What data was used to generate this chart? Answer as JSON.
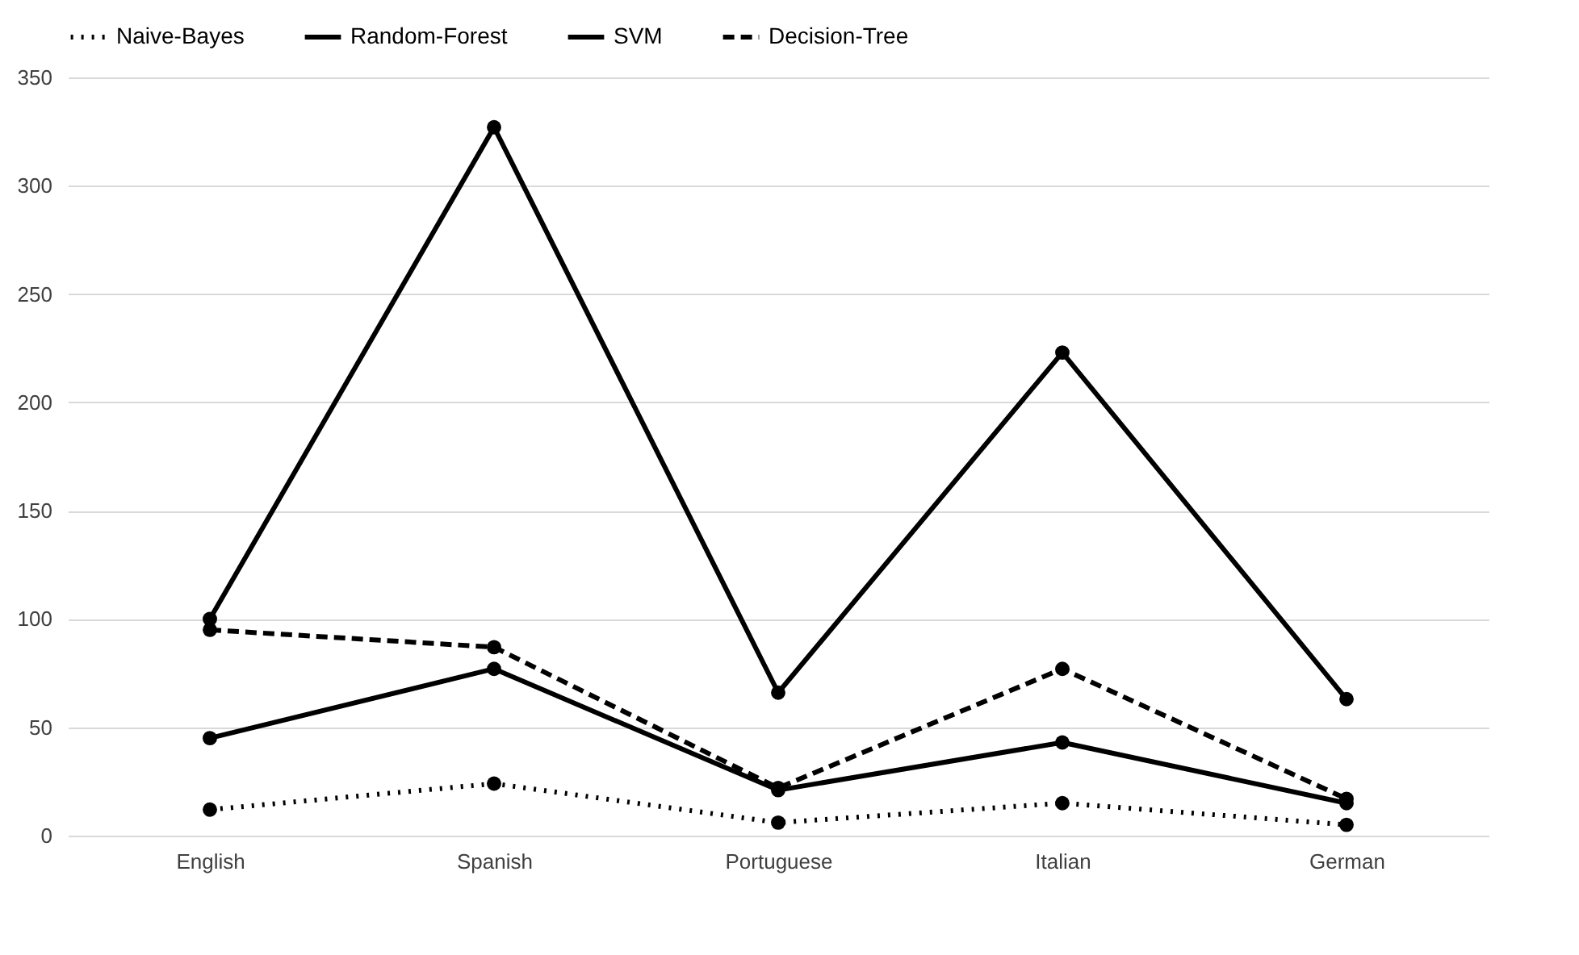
{
  "chart_data": {
    "type": "line",
    "categories": [
      "English",
      "Spanish",
      "Portuguese",
      "Italian",
      "German"
    ],
    "series": [
      {
        "name": "Naive-Bayes",
        "color": "#000000",
        "line_style": "dotted",
        "values": [
          12,
          24,
          6,
          15,
          5
        ]
      },
      {
        "name": "Random-Forest",
        "color": "#000000",
        "line_style": "solid",
        "values": [
          100,
          327,
          66,
          223,
          63
        ]
      },
      {
        "name": "SVM",
        "color": "#000000",
        "line_style": "solid",
        "values": [
          45,
          77,
          21,
          43,
          15
        ]
      },
      {
        "name": "Decision-Tree",
        "color": "#000000",
        "line_style": "dashed",
        "values": [
          95,
          87,
          22,
          77,
          17
        ]
      }
    ],
    "ylim": [
      0,
      350
    ],
    "yticks": [
      0,
      50,
      100,
      150,
      200,
      250,
      300,
      350
    ],
    "grid": "y",
    "legend": "top",
    "marker": "circle"
  }
}
